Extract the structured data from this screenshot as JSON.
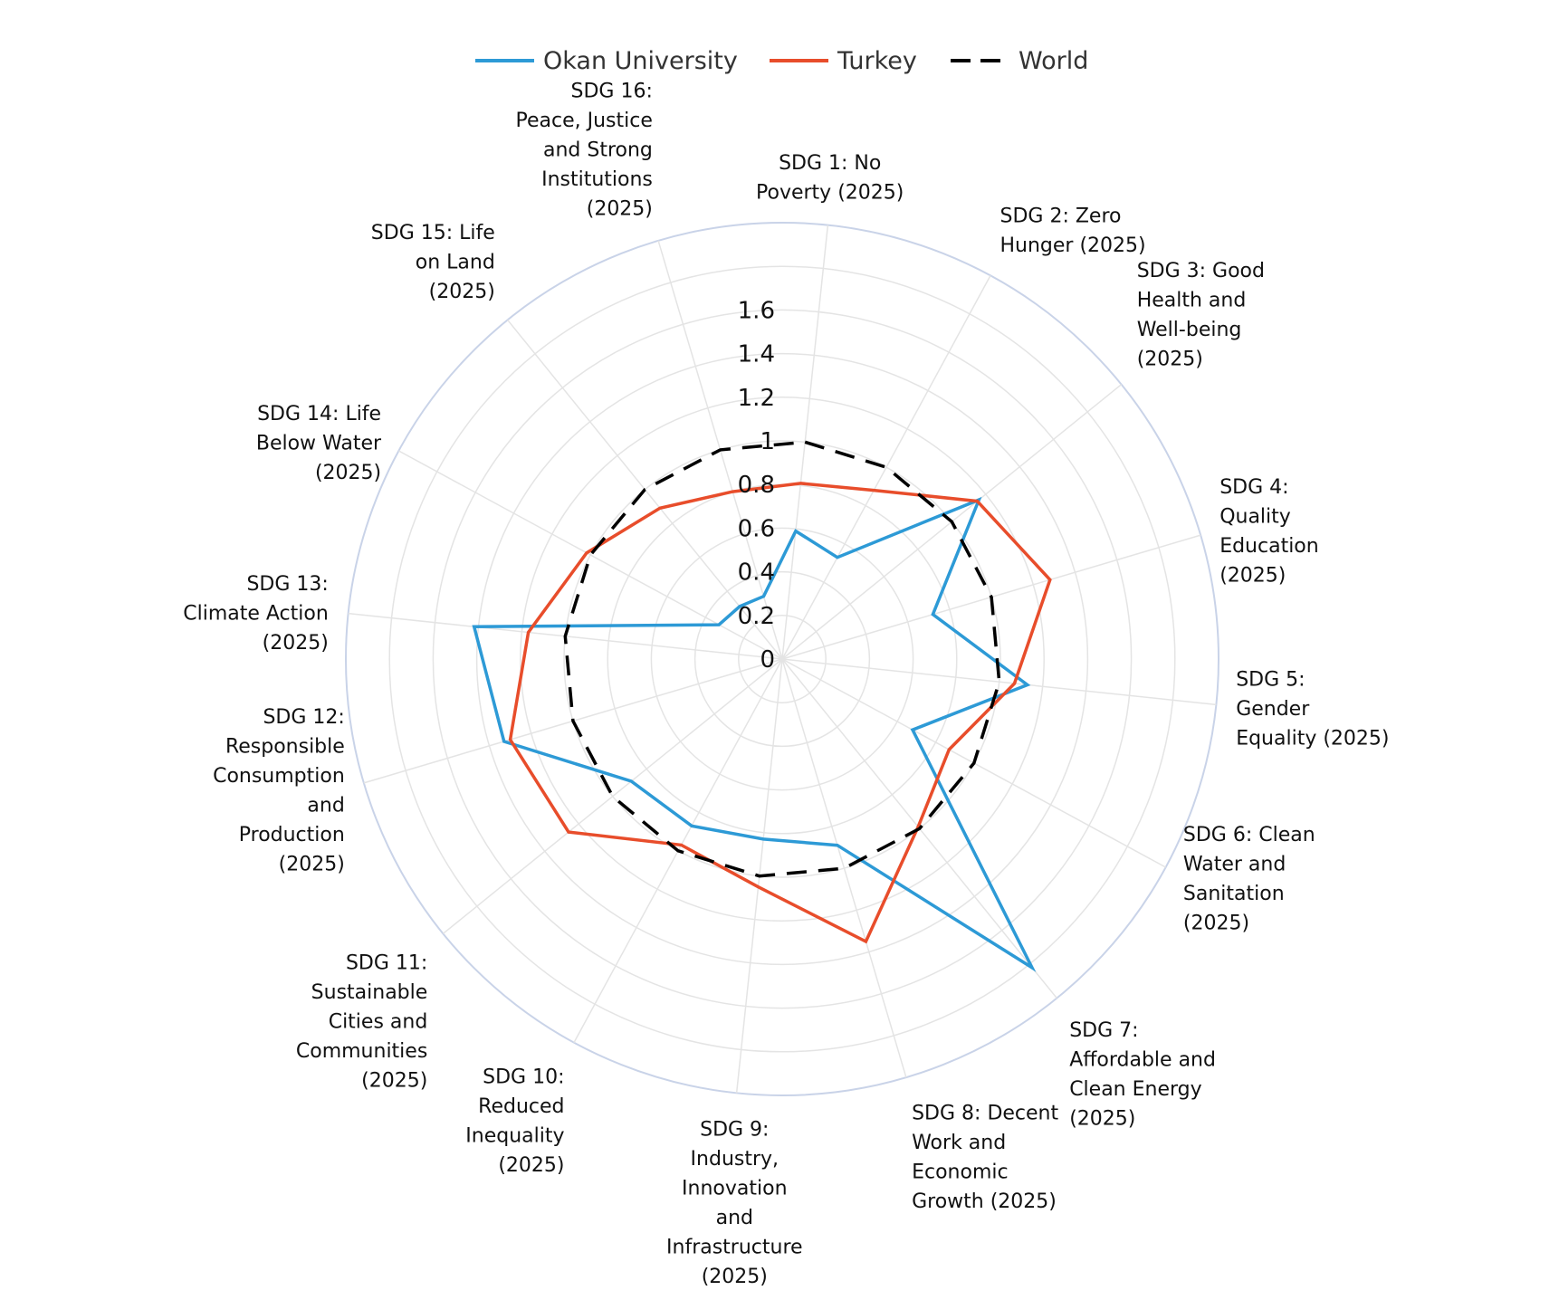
{
  "chart_data": {
    "type": "radar",
    "categories": [
      "SDG 1: No Poverty (2025)",
      "SDG 2: Zero Hunger (2025)",
      "SDG 3: Good Health and Well-being (2025)",
      "SDG 4: Quality Education (2025)",
      "SDG 5: Gender Equality (2025)",
      "SDG 6: Clean Water and Sanitation (2025)",
      "SDG 7: Affordable and Clean Energy (2025)",
      "SDG 8: Decent Work and Economic Growth (2025)",
      "SDG 9: Industry, Innovation and Infrastructure (2025)",
      "SDG 10: Reduced Inequality (2025)",
      "SDG 11: Sustainable Cities and Communities (2025)",
      "SDG 12: Responsible Consumption and Production (2025)",
      "SDG 13: Climate Action (2025)",
      "SDG 14: Life Below Water (2025)",
      "SDG 15: Life on Land (2025)",
      "SDG 16: Peace, Justice and Strong Institutions (2025)"
    ],
    "category_lines": [
      [
        "SDG 1: No",
        "Poverty (2025)"
      ],
      [
        "SDG 2: Zero",
        "Hunger (2025)"
      ],
      [
        "SDG 3: Good",
        "Health and",
        "Well-being",
        "(2025)"
      ],
      [
        "SDG 4:",
        "Quality",
        "Education",
        "(2025)"
      ],
      [
        "SDG 5:",
        "Gender",
        "Equality (2025)"
      ],
      [
        "SDG 6: Clean",
        "Water and",
        "Sanitation",
        "(2025)"
      ],
      [
        "SDG 7:",
        "Affordable and",
        "Clean Energy",
        "(2025)"
      ],
      [
        "SDG 8: Decent",
        "Work and",
        "Economic",
        "Growth (2025)"
      ],
      [
        "SDG 9:",
        "Industry,",
        "Innovation",
        "and",
        "Infrastructure",
        "(2025)"
      ],
      [
        "SDG 10:",
        "Reduced",
        "Inequality",
        "(2025)"
      ],
      [
        "SDG 11:",
        "Sustainable",
        "Cities and",
        "Communities",
        "(2025)"
      ],
      [
        "SDG 12:",
        "Responsible",
        "Consumption",
        "and",
        "Production",
        "(2025)"
      ],
      [
        "SDG 13:",
        "Climate Action",
        "(2025)"
      ],
      [
        "SDG 14: Life",
        "Below Water",
        "(2025)"
      ],
      [
        "SDG 15: Life",
        "on Land",
        "(2025)"
      ],
      [
        "SDG 16:",
        "Peace, Justice",
        "and Strong",
        "Institutions",
        "(2025)"
      ]
    ],
    "series": [
      {
        "name": "Okan University",
        "color": "#2d9ad6",
        "dash": "solid",
        "values": [
          0.59,
          0.53,
          1.16,
          0.72,
          1.13,
          0.68,
          1.82,
          0.89,
          0.83,
          0.87,
          0.89,
          1.33,
          1.42,
          0.33,
          0.31,
          0.3
        ]
      },
      {
        "name": "Turkey",
        "color": "#e84d2b",
        "dash": "solid",
        "values": [
          0.81,
          0.88,
          1.15,
          1.28,
          1.07,
          0.87,
          0.99,
          1.35,
          1.05,
          0.97,
          1.26,
          1.3,
          1.17,
          1.02,
          0.89,
          0.8
        ]
      },
      {
        "name": "World",
        "color": "#000000",
        "dash": "dashed",
        "values": [
          1.0,
          1.0,
          1.0,
          1.0,
          1.0,
          1.0,
          1.0,
          1.0,
          1.0,
          1.0,
          1.0,
          1.0,
          1.0,
          1.0,
          1.0,
          1.0
        ]
      }
    ],
    "radial_ticks": [
      "0",
      "0.2",
      "0.4",
      "0.6",
      "0.8",
      "1",
      "1.2",
      "1.4",
      "1.6"
    ],
    "radial_range": [
      0,
      2.0
    ],
    "grid_step": 0.2,
    "legend_position": "top-center",
    "grid": true,
    "grid_color": "#e4e4e4",
    "outer_ring_color": "#c9d3e8"
  }
}
